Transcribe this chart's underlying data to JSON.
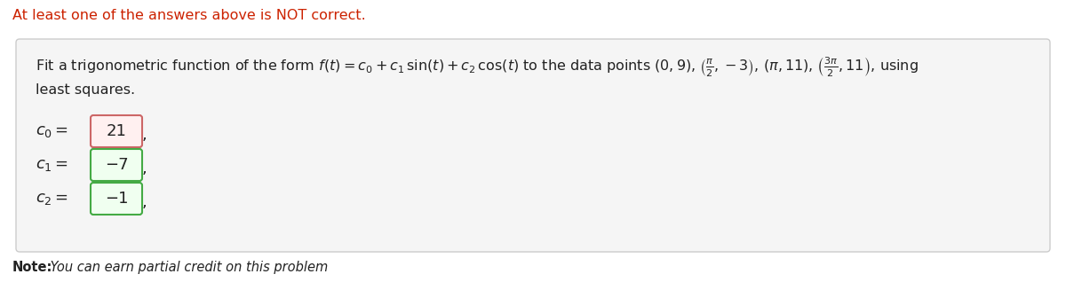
{
  "warning_text": "At least one of the answers above is NOT correct.",
  "warning_color": "#cc2200",
  "c0_value": "21",
  "c0_box_facecolor": "#fff0f0",
  "c0_box_edgecolor": "#cc6666",
  "c1_value": "−7",
  "c1_box_facecolor": "#f0fff0",
  "c1_box_edgecolor": "#44aa44",
  "c2_value": "−1",
  "c2_box_facecolor": "#f0fff0",
  "c2_box_edgecolor": "#44aa44",
  "note_bold": "Note:",
  "note_italic": " You can earn partial credit on this problem",
  "bg_color": "#ffffff",
  "box_bg": "#f5f5f5",
  "box_border_color": "#cccccc",
  "main_text_color": "#222222",
  "formula_line": "Fit a trigonometric function of the form $f(t) = c_0 + c_1\\,\\sin(t) + c_2\\,\\cos(t)$ to the data points $(0, 9)$, $\\left(\\frac{\\pi}{2}, -3\\right)$, $(\\pi, 11)$, $\\left(\\frac{3\\pi}{2}, 11\\right)$, using",
  "line2": "least squares.",
  "figsize": [
    12.0,
    3.18
  ],
  "dpi": 100
}
